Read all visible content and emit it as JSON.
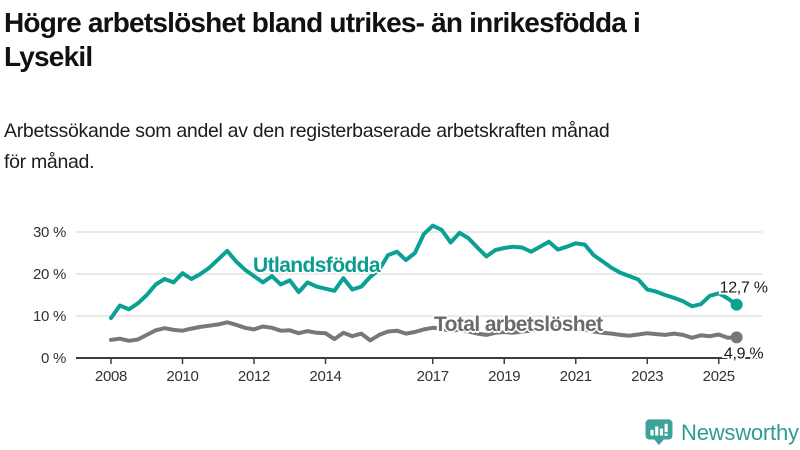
{
  "title_lines": [
    "Högre arbetslöshet bland utrikes- än inrikesfödda i",
    "Lysekil"
  ],
  "subtitle_lines": [
    "Arbetssökande som andel av den registerbaserade arbetskraften månad",
    "för månad."
  ],
  "branding": {
    "logo_text": "Newsworthy",
    "logo_icon": "bar-chart-speech-bubble",
    "logo_color": "#2e9c93",
    "logo_icon_color": "#3ba39a"
  },
  "colors": {
    "foreign_born": "#0aa194",
    "total": "#77787b",
    "axis": "#3d3d3d",
    "grid": "#d9d9d9",
    "tick_text": "#333333",
    "value_text": "#1a1a1a",
    "background": "#ffffff"
  },
  "chart_data": {
    "type": "line",
    "title": "Högre arbetslöshet bland utrikes- än inrikesfödda i Lysekil",
    "subtitle": "Arbetssökande som andel av den registerbaserade arbetskraften månad för månad.",
    "xlabel": "",
    "ylabel": "",
    "ylim": [
      0,
      33
    ],
    "xlim": [
      2007.6,
      2026.3
    ],
    "grid": "horizontal",
    "legend_position": "inline-labels",
    "x_label_ticks": [
      2008,
      2010,
      2012,
      2014,
      2017,
      2019,
      2021,
      2023,
      2025
    ],
    "y_ticks": [
      0,
      10,
      20,
      30
    ],
    "y_tick_labels": [
      "0 %",
      "10 %",
      "20 %",
      "30 %"
    ],
    "x": [
      2008,
      2008.25,
      2008.5,
      2008.75,
      2009,
      2009.25,
      2009.5,
      2009.75,
      2010,
      2010.25,
      2010.5,
      2010.75,
      2011,
      2011.25,
      2011.5,
      2011.75,
      2012,
      2012.25,
      2012.5,
      2012.75,
      2013,
      2013.25,
      2013.5,
      2013.75,
      2014,
      2014.25,
      2014.5,
      2014.75,
      2015,
      2015.25,
      2015.5,
      2015.75,
      2016,
      2016.25,
      2016.5,
      2016.75,
      2017,
      2017.25,
      2017.5,
      2017.75,
      2018,
      2018.25,
      2018.5,
      2018.75,
      2019,
      2019.25,
      2019.5,
      2019.75,
      2020,
      2020.25,
      2020.5,
      2020.75,
      2021,
      2021.25,
      2021.5,
      2021.75,
      2022,
      2022.25,
      2022.5,
      2022.75,
      2023,
      2023.25,
      2023.5,
      2023.75,
      2024,
      2024.25,
      2024.5,
      2024.75,
      2025,
      2025.25,
      2025.5
    ],
    "series": [
      {
        "name": "Utlandsfödda",
        "color": "#0aa194",
        "end_label": "12,7 %",
        "end_value": 12.7,
        "values": [
          9.5,
          12.5,
          11.6,
          13.0,
          15.0,
          17.5,
          18.8,
          18.0,
          20.2,
          18.8,
          20.0,
          21.5,
          23.5,
          25.5,
          23.0,
          21.0,
          19.5,
          18.0,
          19.5,
          17.5,
          18.5,
          15.7,
          18.0,
          17.0,
          16.5,
          16.0,
          19.0,
          16.3,
          17.0,
          19.3,
          21.0,
          24.5,
          25.3,
          23.3,
          25.0,
          29.5,
          31.5,
          30.5,
          27.5,
          29.8,
          28.5,
          26.3,
          24.2,
          25.7,
          26.2,
          26.5,
          26.3,
          25.3,
          26.5,
          27.7,
          25.8,
          26.5,
          27.3,
          27.0,
          24.5,
          23.0,
          21.5,
          20.3,
          19.5,
          18.7,
          16.3,
          15.8,
          15.0,
          14.3,
          13.5,
          12.3,
          12.8,
          14.8,
          15.4,
          14.2,
          12.7
        ]
      },
      {
        "name": "Total arbetslöshet",
        "color": "#77787b",
        "end_label": "4,9 %",
        "end_value": 4.9,
        "values": [
          4.3,
          4.6,
          4.1,
          4.4,
          5.5,
          6.6,
          7.1,
          6.7,
          6.5,
          7.0,
          7.4,
          7.7,
          8.0,
          8.5,
          7.9,
          7.2,
          6.8,
          7.5,
          7.2,
          6.5,
          6.6,
          5.9,
          6.4,
          6.0,
          5.9,
          4.5,
          6.0,
          5.2,
          5.8,
          4.2,
          5.5,
          6.3,
          6.5,
          5.8,
          6.2,
          6.8,
          7.2,
          7.0,
          6.4,
          6.8,
          6.3,
          5.8,
          5.5,
          6.0,
          6.2,
          6.0,
          6.3,
          6.5,
          6.8,
          7.6,
          7.3,
          7.0,
          7.2,
          6.8,
          6.3,
          6.0,
          5.8,
          5.5,
          5.3,
          5.6,
          5.9,
          5.7,
          5.5,
          5.8,
          5.5,
          4.8,
          5.4,
          5.2,
          5.6,
          4.8,
          4.9
        ]
      }
    ]
  }
}
